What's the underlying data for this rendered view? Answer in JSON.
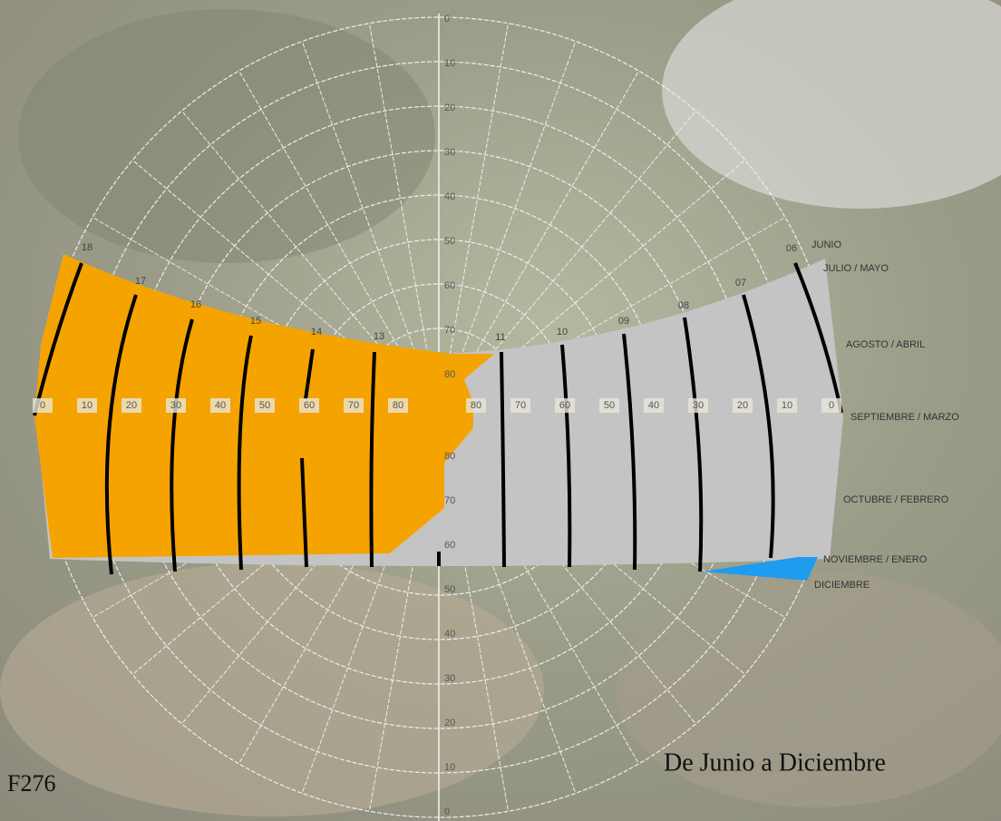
{
  "caption": "De Junio a Diciembre",
  "code": "F276",
  "hours": [
    "18",
    "17",
    "16",
    "15",
    "14",
    "13",
    "11",
    "10",
    "09",
    "08",
    "07",
    "06"
  ],
  "months": [
    "JUNIO",
    "JULIO / MAYO",
    "AGOSTO / ABRIL",
    "SEPTIEMBRE / MARZO",
    "OCTUBRE / FEBRERO",
    "NOVIEMBRE / ENERO",
    "DICIEMBRE"
  ],
  "altitude_top": [
    0,
    10,
    20,
    30,
    40,
    50,
    60,
    70,
    80
  ],
  "altitude_bottom": [
    80,
    70,
    60,
    50,
    40,
    30,
    20,
    10,
    0
  ],
  "altitude_left": [
    0,
    10,
    20,
    30,
    40,
    50,
    60,
    70,
    80
  ],
  "altitude_right": [
    80,
    70,
    60,
    50,
    40,
    30,
    20,
    10,
    0
  ]
}
